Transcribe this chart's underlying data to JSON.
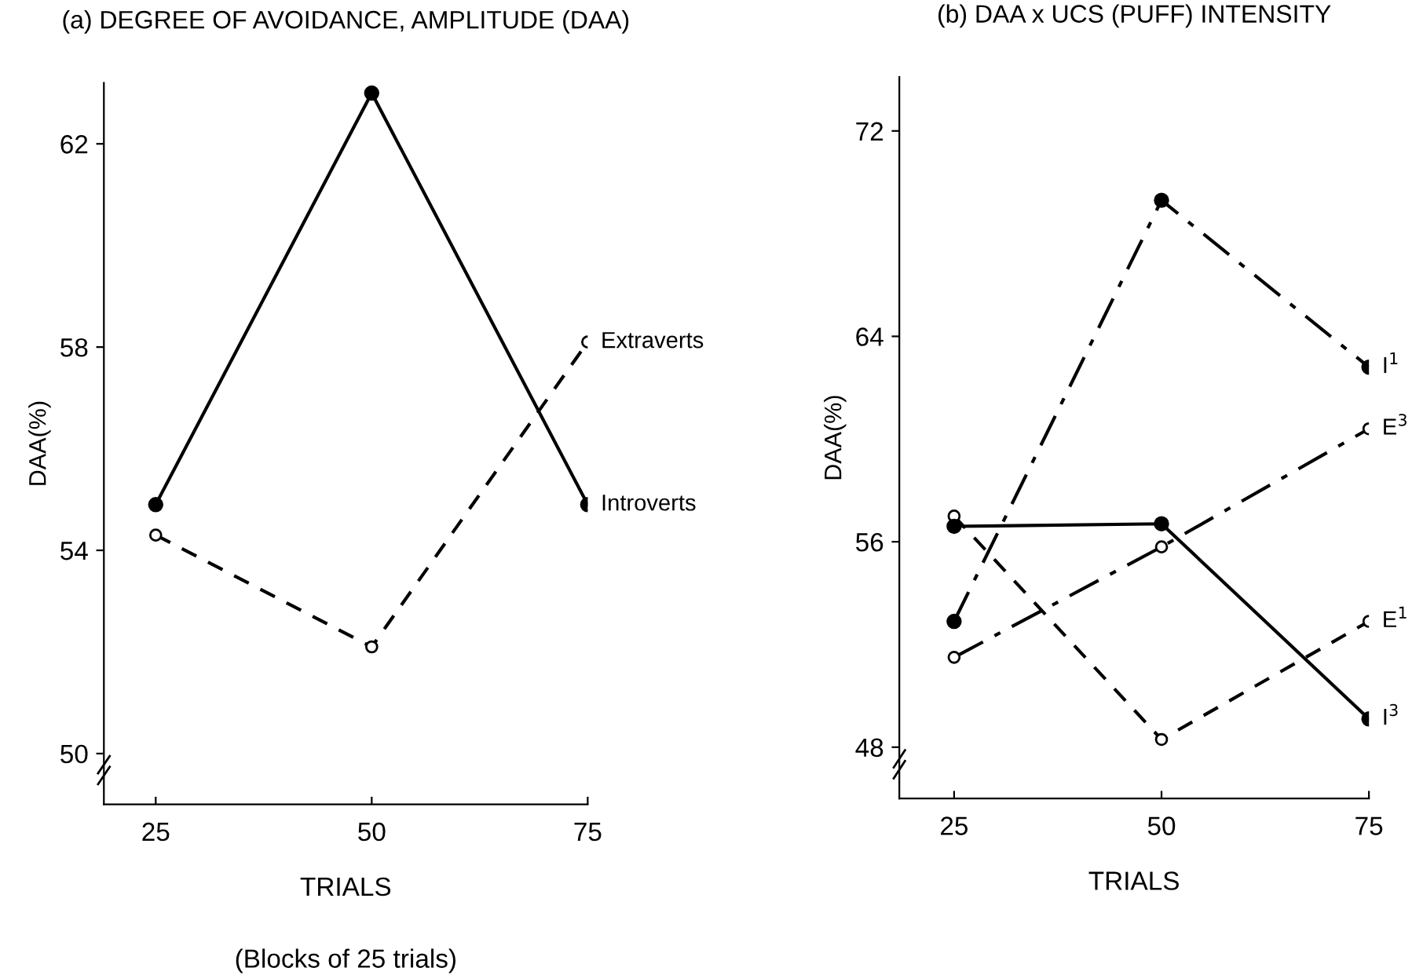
{
  "chart_data": [
    {
      "type": "line",
      "title": "(a) DEGREE OF AVOIDANCE, AMPLITUDE (DAA)",
      "xlabel": "TRIALS",
      "ylabel": "DAA(%)",
      "annotations": [
        "(Blocks of 25 trials)"
      ],
      "x": [
        25,
        50,
        75
      ],
      "xlim": [
        19,
        75
      ],
      "xticks": [
        25,
        50,
        75
      ],
      "ylim": [
        49,
        63.2
      ],
      "yticks": [
        50,
        54,
        58,
        62
      ],
      "grid": false,
      "legend": false,
      "series": [
        {
          "name": "Introverts",
          "color": "#000000",
          "values": [
            54.9,
            63.0,
            54.9
          ],
          "marker": "circle",
          "line_style": "solid"
        },
        {
          "name": "Extraverts",
          "color": "#000000",
          "values": [
            54.3,
            52.1,
            58.1
          ],
          "marker": "circle",
          "line_style": "dashed"
        }
      ]
    },
    {
      "type": "line",
      "title": "(b) DAA x UCS (PUFF) INTENSITY",
      "xlabel": "TRIALS",
      "ylabel": "DAA(%)",
      "x": [
        25,
        50,
        75
      ],
      "xlim": [
        18.4,
        75
      ],
      "xticks": [
        25,
        50,
        75
      ],
      "ylim": [
        46,
        74.1
      ],
      "yticks": [
        48,
        56,
        64,
        72
      ],
      "grid": false,
      "legend": false,
      "series": [
        {
          "name": "I$^{1}$",
          "color": "#000000",
          "values": [
            52.9,
            69.3,
            62.8
          ],
          "marker": "circle",
          "line_style": "dashdot"
        },
        {
          "name": "E$^{3}$",
          "color": "#000000",
          "values": [
            51.5,
            55.8,
            60.4
          ],
          "marker": "circle",
          "line_style": "dashdot"
        },
        {
          "name": "E$^{1}$",
          "color": "#000000",
          "values": [
            57.0,
            48.3,
            52.9
          ],
          "marker": "circle",
          "line_style": "dashed"
        },
        {
          "name": "I$^{3}$",
          "color": "#000000",
          "values": [
            56.6,
            56.7,
            49.1
          ],
          "marker": "circle",
          "line_style": "solid"
        }
      ]
    }
  ]
}
